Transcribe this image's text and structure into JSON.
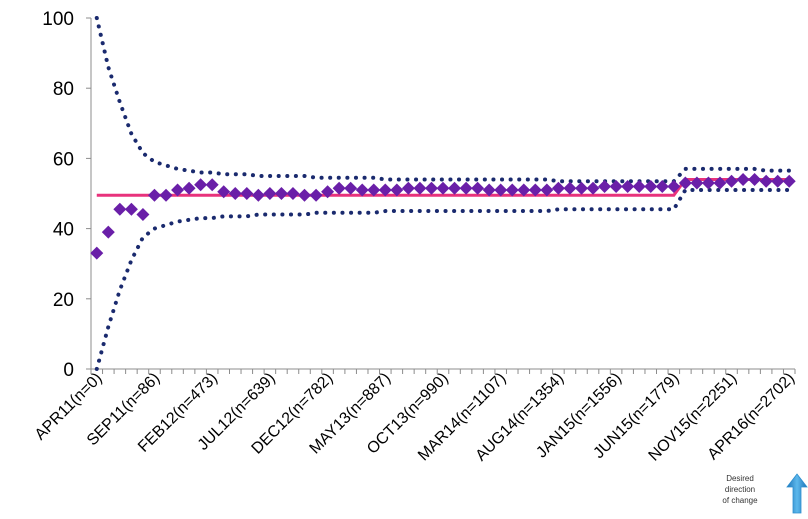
{
  "chart_data": {
    "type": "line",
    "title": "",
    "xlabel": "",
    "ylabel": "",
    "ylim": [
      0,
      100
    ],
    "yticks": [
      0,
      20,
      40,
      60,
      80,
      100
    ],
    "x_tick_labels": [
      "APR11(n=0)",
      "SEP11(n=86)",
      "FEB12(n=473)",
      "JUL12(n=639)",
      "DEC12(n=782)",
      "MAY13(n=887)",
      "OCT13(n=990)",
      "MAR14(n=1107)",
      "AUG14(n=1354)",
      "JAN15(n=1556)",
      "JUN15(n=1779)",
      "NOV15(n=2251)",
      "APR16(n=2702)"
    ],
    "x_count": 61,
    "label_every": 5,
    "grid": false,
    "series": [
      {
        "kind": "data_points",
        "marker": "diamond",
        "color": "#6a1fa8",
        "values": [
          33,
          39,
          45.5,
          45.5,
          44,
          49.5,
          49.5,
          51,
          51.5,
          52.5,
          52.5,
          50.5,
          50,
          50,
          49.5,
          50,
          50,
          50,
          49.5,
          49.5,
          50.5,
          51.5,
          51.5,
          51,
          51,
          51,
          51,
          51.5,
          51.5,
          51.5,
          51.5,
          51.5,
          51.5,
          51.5,
          51,
          51,
          51,
          51,
          51,
          51,
          51.5,
          51.5,
          51.5,
          51.5,
          52,
          52,
          52,
          52,
          52,
          52,
          52,
          53,
          53,
          53,
          53,
          53.5,
          54,
          54,
          53.5,
          53.5,
          53.5
        ]
      },
      {
        "kind": "center_line",
        "color": "#e8327c",
        "values": [
          49.5,
          49.5,
          49.5,
          49.5,
          49.5,
          49.5,
          49.5,
          49.5,
          49.5,
          49.5,
          49.5,
          49.5,
          49.5,
          49.5,
          49.5,
          49.5,
          49.5,
          49.5,
          49.5,
          49.5,
          49.5,
          49.5,
          49.5,
          49.5,
          49.5,
          49.5,
          49.5,
          49.5,
          49.5,
          49.5,
          49.5,
          49.5,
          49.5,
          49.5,
          49.5,
          49.5,
          49.5,
          49.5,
          49.5,
          49.5,
          49.5,
          49.5,
          49.5,
          49.5,
          49.5,
          49.5,
          49.5,
          49.5,
          49.5,
          49.5,
          49.5,
          54,
          54,
          54,
          54,
          54,
          54,
          54,
          54,
          54,
          54
        ]
      },
      {
        "kind": "upper_limit",
        "color": "#1a2a6e",
        "values": [
          100,
          86,
          76,
          67,
          61.5,
          59,
          58,
          57,
          56.5,
          56,
          56,
          55.5,
          55.5,
          55.5,
          55,
          55,
          55,
          55,
          55,
          54.5,
          54.5,
          54.5,
          54.5,
          54.5,
          54.5,
          54,
          54,
          54,
          54,
          54,
          54,
          54,
          54,
          54,
          54,
          54,
          54,
          54,
          54,
          54,
          53.5,
          53.5,
          53.5,
          53.5,
          53.5,
          53.5,
          53.5,
          53.5,
          53.5,
          53.5,
          53.5,
          57,
          57,
          57,
          57,
          57,
          57,
          57,
          56.5,
          56.5,
          56.5
        ]
      },
      {
        "kind": "lower_limit",
        "color": "#1a2a6e",
        "values": [
          0,
          12,
          22.5,
          31,
          37.5,
          40,
          41,
          42,
          42.5,
          43,
          43,
          43.5,
          43.5,
          43.5,
          44,
          44,
          44,
          44,
          44,
          44.5,
          44.5,
          44.5,
          44.5,
          44.5,
          44.5,
          45,
          45,
          45,
          45,
          45,
          45,
          45,
          45,
          45,
          45,
          45,
          45,
          45,
          45,
          45,
          45.5,
          45.5,
          45.5,
          45.5,
          45.5,
          45.5,
          45.5,
          45.5,
          45.5,
          45.5,
          45.5,
          51,
          51,
          51,
          51,
          51,
          51,
          51,
          51,
          51,
          51
        ]
      }
    ],
    "annotation": {
      "text_lines": [
        "Desired",
        "direction",
        "of change"
      ],
      "arrow_direction": "up",
      "arrow_color": "#2e8fd0"
    }
  }
}
